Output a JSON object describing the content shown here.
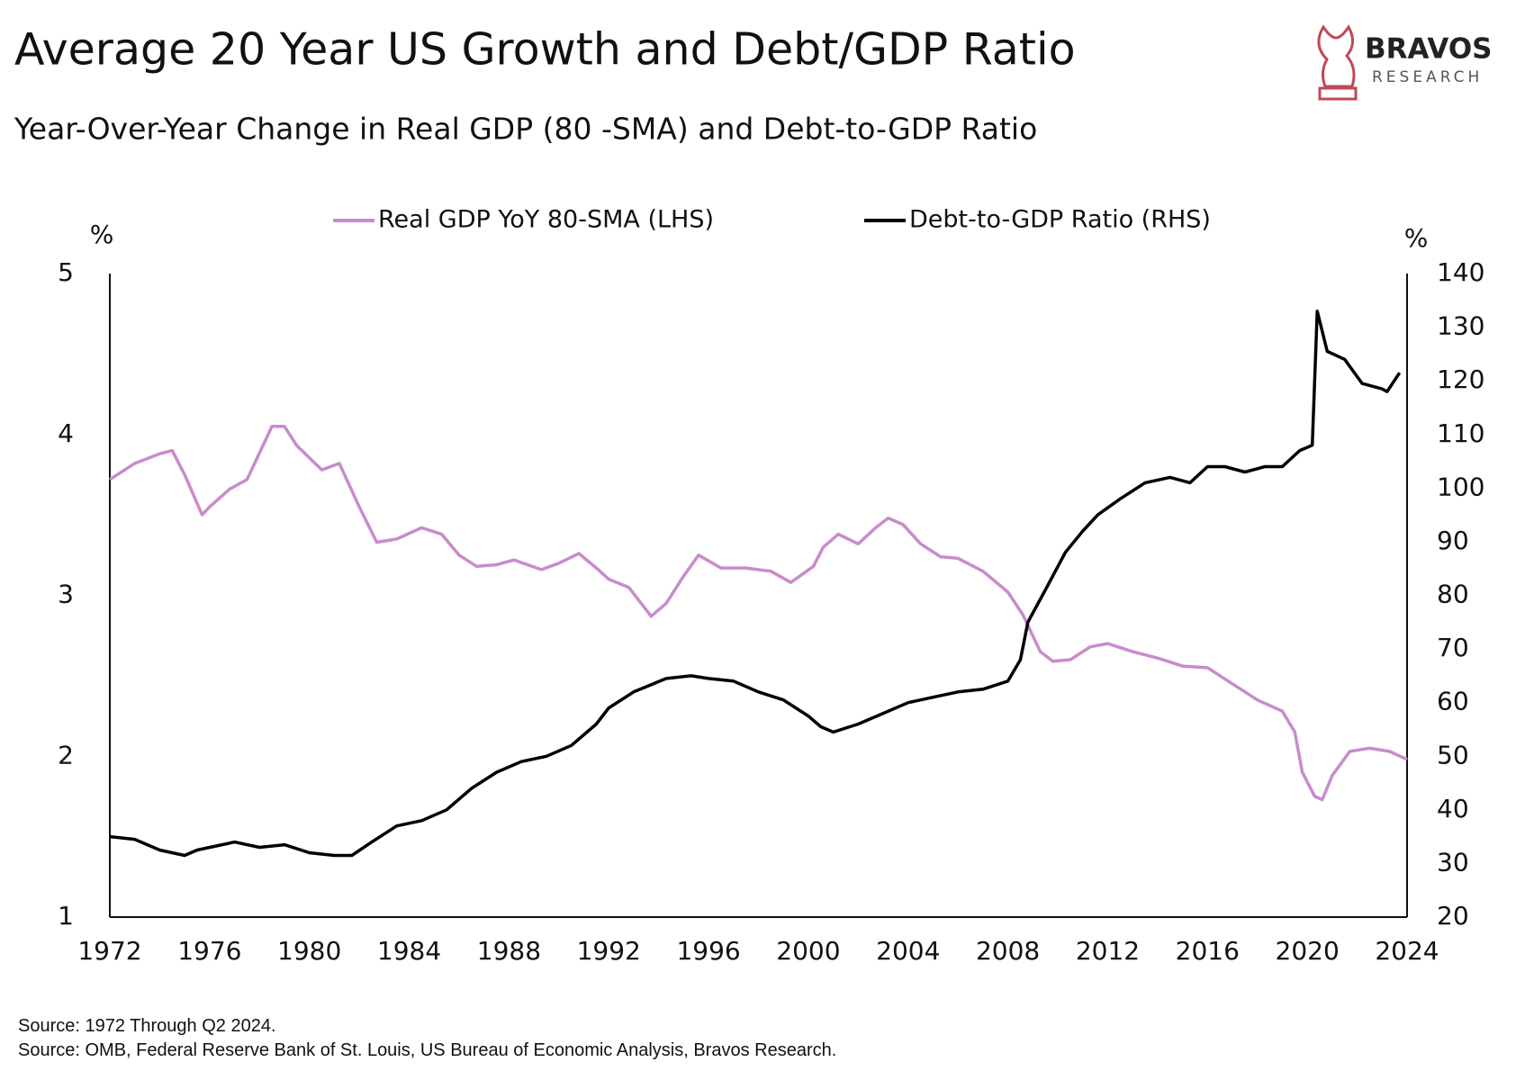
{
  "logo": {
    "name": "BRAVOS",
    "tagline": "RESEARCH"
  },
  "chart_data": {
    "type": "line",
    "title": "Average 20 Year US Growth and Debt/GDP Ratio",
    "subtitle": "Year-Over-Year Change in Real GDP (80 -SMA) and Debt-to-GDP Ratio",
    "y_unit": "%",
    "y2_unit": "%",
    "notes": [
      "Source: 1972 Through Q2 2024.",
      "Source: OMB, Federal Reserve Bank of St. Louis, US Bureau of Economic Analysis, Bravos Research."
    ],
    "xlim": [
      1972,
      2024
    ],
    "xticks": [
      1972,
      1976,
      1980,
      1984,
      1988,
      1992,
      1996,
      2000,
      2004,
      2008,
      2012,
      2016,
      2020,
      2024
    ],
    "ylim": [
      1,
      5
    ],
    "yticks": [
      1,
      2,
      3,
      4,
      5
    ],
    "y2lim": [
      20,
      140
    ],
    "y2ticks": [
      20,
      30,
      40,
      50,
      60,
      70,
      80,
      90,
      100,
      110,
      120,
      130,
      140
    ],
    "grid": false,
    "series": [
      {
        "name": "Real GDP YoY 80-SMA (LHS)",
        "color": "#c98bcc",
        "axis": "y",
        "x": [
          1972,
          1973,
          1974,
          1974.5,
          1975,
          1975.7,
          1976,
          1976.8,
          1977.5,
          1978.5,
          1979,
          1979.5,
          1980.5,
          1981.2,
          1982,
          1982.7,
          1983.5,
          1984.5,
          1985.3,
          1986,
          1986.7,
          1987.5,
          1988.2,
          1989.3,
          1990,
          1990.8,
          1991.5,
          1992,
          1992.8,
          1993.7,
          1994.3,
          1995,
          1995.6,
          1996.5,
          1997.5,
          1998.5,
          1999.3,
          2000.2,
          2000.6,
          2001.2,
          2002,
          2002.7,
          2003.2,
          2003.8,
          2004.5,
          2005.3,
          2006,
          2007,
          2008,
          2008.6,
          2009.3,
          2009.8,
          2010.5,
          2011.3,
          2012,
          2013,
          2014,
          2015,
          2016,
          2017,
          2018,
          2019,
          2019.5,
          2019.8,
          2020.3,
          2020.6,
          2021,
          2021.7,
          2022.5,
          2023.3,
          2024
        ],
        "values": [
          3.72,
          3.82,
          3.88,
          3.9,
          3.75,
          3.5,
          3.55,
          3.66,
          3.72,
          4.05,
          4.05,
          3.93,
          3.78,
          3.82,
          3.55,
          3.33,
          3.35,
          3.42,
          3.38,
          3.25,
          3.18,
          3.19,
          3.22,
          3.16,
          3.2,
          3.26,
          3.17,
          3.1,
          3.05,
          2.87,
          2.95,
          3.12,
          3.25,
          3.17,
          3.17,
          3.15,
          3.08,
          3.18,
          3.3,
          3.38,
          3.32,
          3.42,
          3.48,
          3.44,
          3.32,
          3.24,
          3.23,
          3.15,
          3.02,
          2.88,
          2.65,
          2.59,
          2.6,
          2.68,
          2.7,
          2.65,
          2.61,
          2.56,
          2.55,
          2.45,
          2.35,
          2.28,
          2.15,
          1.9,
          1.75,
          1.73,
          1.88,
          2.03,
          2.05,
          2.03,
          1.98
        ]
      },
      {
        "name": "Debt-to-GDP Ratio (RHS)",
        "color": "#000000",
        "axis": "y2",
        "x": [
          1972,
          1973,
          1974,
          1975,
          1975.5,
          1977,
          1978,
          1979,
          1980,
          1981,
          1981.7,
          1982.5,
          1983.5,
          1984.5,
          1985.5,
          1986.5,
          1987.5,
          1988.5,
          1989.5,
          1990.5,
          1991.5,
          1992,
          1993,
          1994.3,
          1995.3,
          1996,
          1997,
          1998,
          1999,
          2000,
          2000.5,
          2001,
          2002,
          2003,
          2004,
          2005,
          2006,
          2007,
          2008,
          2008.5,
          2008.8,
          2009.5,
          2010.3,
          2011,
          2011.6,
          2012.5,
          2013.5,
          2014.5,
          2015.3,
          2016,
          2016.7,
          2017.5,
          2018.3,
          2019,
          2019.7,
          2020.2,
          2020.4,
          2020.8,
          2021.5,
          2022.2,
          2023,
          2023.2,
          2023.7
        ],
        "values": [
          35,
          34.5,
          32.5,
          31.5,
          32.5,
          34,
          33,
          33.5,
          32,
          31.5,
          31.5,
          34,
          37,
          38,
          40,
          44,
          47,
          49,
          50,
          52,
          56,
          59,
          62,
          64.5,
          65,
          64.5,
          64,
          62,
          60.5,
          57.5,
          55.5,
          54.5,
          56,
          58,
          60,
          61,
          62,
          62.5,
          64,
          68,
          75,
          81,
          88,
          92,
          95,
          98,
          101,
          102,
          101,
          104,
          104,
          103,
          104,
          104,
          107,
          108,
          133,
          125.5,
          124,
          119.5,
          118.5,
          118,
          121.5
        ]
      }
    ]
  }
}
